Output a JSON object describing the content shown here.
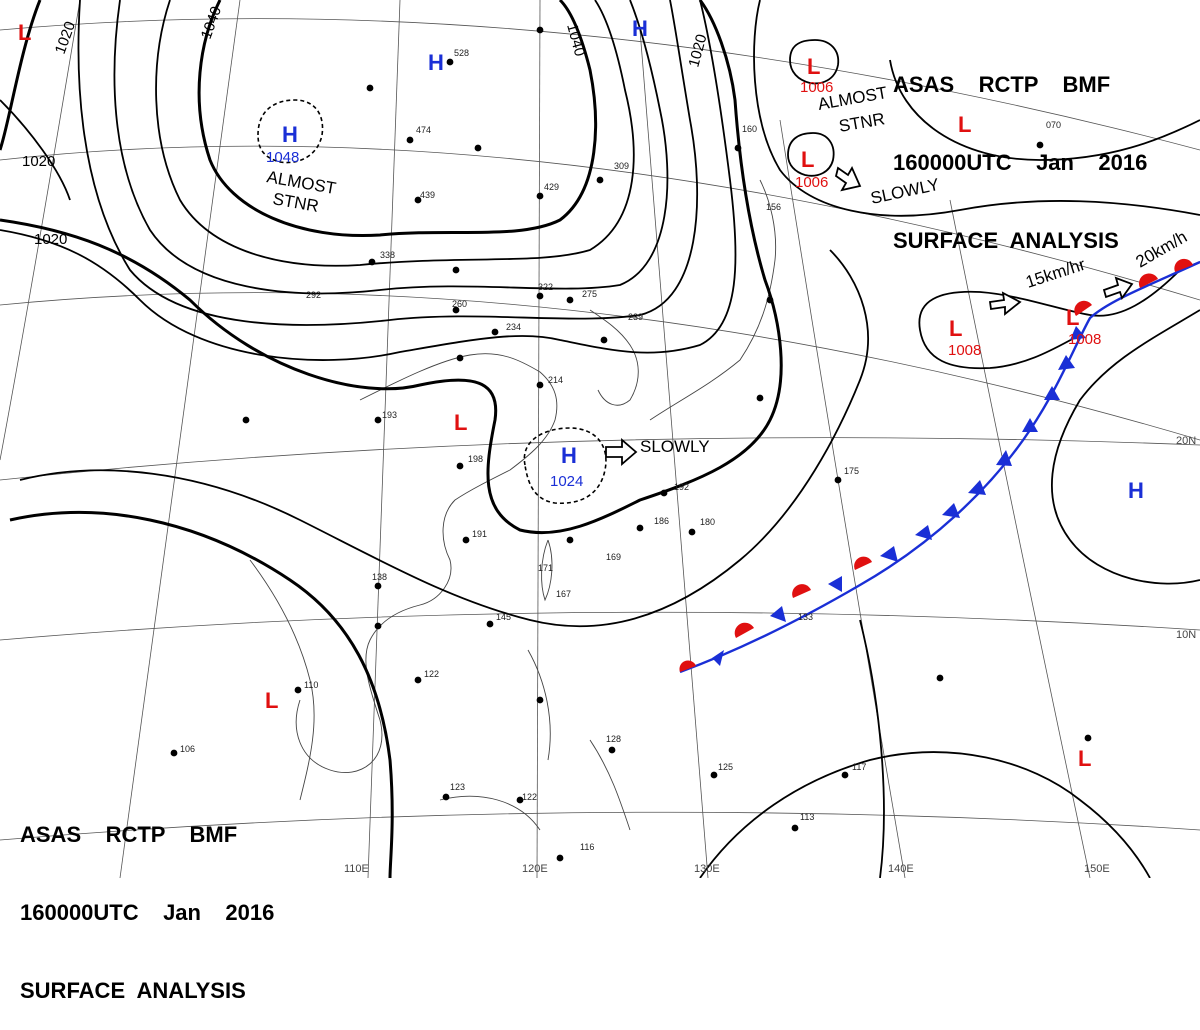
{
  "header": {
    "line1": "ASAS    RCTP    BMF",
    "line2": "160000UTC    Jan    2016",
    "line3": "SURFACE  ANALYSIS"
  },
  "colors": {
    "high": "#1a2fd6",
    "low": "#e01010",
    "cold_front": "#1a2fd6",
    "warm_front": "#e01010",
    "isobar": "#000000"
  },
  "pressure_centers": [
    {
      "type": "H",
      "value": "1048"
    },
    {
      "type": "H",
      "value": ""
    },
    {
      "type": "H",
      "value": ""
    },
    {
      "type": "H",
      "value": "1024"
    },
    {
      "type": "H",
      "value": ""
    },
    {
      "type": "L",
      "value": "1006"
    },
    {
      "type": "L",
      "value": "1006"
    },
    {
      "type": "L",
      "value": "1008"
    },
    {
      "type": "L",
      "value": "1008"
    },
    {
      "type": "L",
      "value": ""
    },
    {
      "type": "L",
      "value": ""
    },
    {
      "type": "L",
      "value": ""
    },
    {
      "type": "L",
      "value": ""
    },
    {
      "type": "L",
      "value": ""
    }
  ],
  "isobar_labels": [
    "1020",
    "1040",
    "1040",
    "1020",
    "1020",
    "1020"
  ],
  "annotations": {
    "almost_stnr_1": "ALMOST",
    "almost_stnr_2": "STNR",
    "almost_stnr_3": "ALMOST",
    "almost_stnr_4": "STNR",
    "slowly_1": "SLOWLY",
    "slowly_2": "SLOWLY",
    "speed_1": "15km/hr",
    "speed_2": "20km/h"
  },
  "grid_labels": {
    "lat_20": "20N",
    "lat_10": "10N",
    "lon_110": "110E",
    "lon_120": "120E",
    "lon_130": "130E",
    "lon_140": "140E",
    "lon_150": "150E"
  },
  "station_samples": [
    "528",
    "474",
    "439",
    "429",
    "309",
    "338",
    "322",
    "275",
    "260",
    "234",
    "214",
    "193",
    "198",
    "191",
    "138",
    "145",
    "122",
    "110",
    "106",
    "123",
    "122",
    "116",
    "128",
    "125",
    "117",
    "113",
    "133",
    "175",
    "180",
    "186",
    "192",
    "169",
    "167",
    "171",
    "160",
    "156",
    "239",
    "292",
    "070"
  ]
}
